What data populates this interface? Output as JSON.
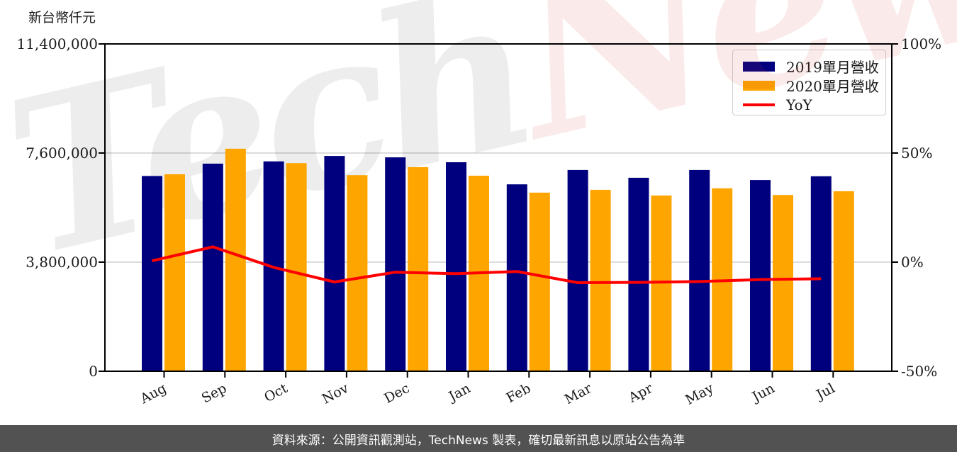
{
  "title": "新台幣仟元",
  "watermark": {
    "part1": "Tech",
    "part2": "News"
  },
  "legend": {
    "items": [
      {
        "label": "2019單月營收",
        "type": "box",
        "color": "#00007f"
      },
      {
        "label": "2020單月營收",
        "type": "box",
        "color": "#ffa500"
      },
      {
        "label": "YoY",
        "type": "line",
        "color": "#ff0000"
      }
    ]
  },
  "footer": {
    "text": "資料來源：公開資訊觀測站，TechNews 製表，確切最新訊息以原站公告為準",
    "background": "#525252",
    "text_color": "#ffffff"
  },
  "chart_data": {
    "type": "bar",
    "subtype": "grouped bars with overlaid line (dual axis)",
    "title": "新台幣仟元",
    "categories": [
      "Aug",
      "Sep",
      "Oct",
      "Nov",
      "Dec",
      "Jan",
      "Feb",
      "Mar",
      "Apr",
      "May",
      "Jun",
      "Jul"
    ],
    "series": [
      {
        "name": "2019單月營收",
        "type": "bar",
        "axis": "left",
        "color": "#00007f",
        "values": [
          6800000,
          7230000,
          7310000,
          7500000,
          7450000,
          7280000,
          6510000,
          7010000,
          6740000,
          7010000,
          6660000,
          6790000
        ]
      },
      {
        "name": "2020單月營收",
        "type": "bar",
        "axis": "left",
        "color": "#ffa500",
        "values": [
          6860000,
          7750000,
          7250000,
          6830000,
          7110000,
          6810000,
          6220000,
          6320000,
          6120000,
          6370000,
          6140000,
          6270000
        ]
      },
      {
        "name": "YoY",
        "type": "line",
        "axis": "right",
        "color": "#ff0000",
        "unit": "%",
        "values": [
          0.6,
          7.0,
          -2.4,
          -9.1,
          -4.6,
          -5.3,
          -4.3,
          -9.4,
          -9.3,
          -8.9,
          -8.0,
          -7.6
        ]
      }
    ],
    "left_axis": {
      "label": "新台幣仟元",
      "min": 0,
      "max": 11400000,
      "ticks": [
        0,
        3800000,
        7600000,
        11400000
      ],
      "tick_labels": [
        "0",
        "3,800,000",
        "7,600,000",
        "11,400,000"
      ]
    },
    "right_axis": {
      "label": "",
      "min": -50,
      "max": 100,
      "ticks": [
        -50,
        0,
        50,
        100
      ],
      "tick_labels": [
        "-50%",
        "0%",
        "50%",
        "100%"
      ]
    },
    "grid": {
      "horizontal_at_left_values": [
        3800000,
        7600000
      ],
      "color": "#dcdcdc"
    },
    "legend_position": "upper right"
  }
}
